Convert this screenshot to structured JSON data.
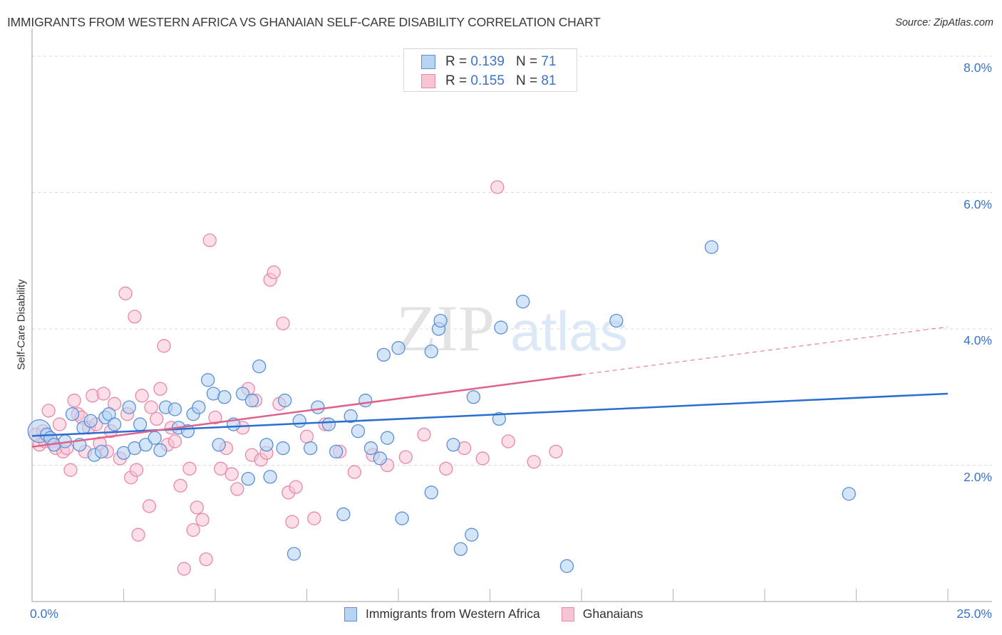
{
  "header": {
    "title": "IMMIGRANTS FROM WESTERN AFRICA VS GHANAIAN SELF-CARE DISABILITY CORRELATION CHART",
    "source": "Source: ZipAtlas.com"
  },
  "watermark": {
    "zip": "ZIP",
    "atlas": "atlas"
  },
  "legend_top": [
    {
      "r_label": "R =",
      "r_value": "0.139",
      "n_label": "N =",
      "n_value": "71"
    },
    {
      "r_label": "R =",
      "r_value": "0.155",
      "n_label": "N =",
      "n_value": "81"
    }
  ],
  "colors": {
    "blue_fill": "#b9d3f3",
    "blue_stroke": "#5b8fd8",
    "blue_line": "#2a6fd0",
    "pink_fill": "#f8c3d3",
    "pink_stroke": "#e889a6",
    "pink_line": "#e0628c",
    "axis_label": "#3b73c8",
    "grid": "#d9d9d9"
  },
  "chart_data": {
    "type": "scatter",
    "title": "IMMIGRANTS FROM WESTERN AFRICA VS GHANAIAN SELF-CARE DISABILITY CORRELATION CHART",
    "xlabel": "",
    "ylabel": "Self-Care Disability",
    "xlim": [
      0,
      25
    ],
    "ylim": [
      0,
      8.5
    ],
    "x_tick_labels": [
      "0.0%",
      "25.0%"
    ],
    "y_ticks": [
      2,
      4,
      6,
      8
    ],
    "y_tick_labels": [
      "2.0%",
      "4.0%",
      "6.0%",
      "8.0%"
    ],
    "grid": "horizontal-dashed",
    "legend_placement": "bottom-center",
    "series": [
      {
        "name": "Immigrants from Western Africa",
        "R": 0.139,
        "N": 71,
        "trend": {
          "x0": 0,
          "y0": 2.43,
          "x1": 25,
          "y1": 3.05,
          "style": "solid"
        },
        "points": [
          [
            0.2,
            2.5
          ],
          [
            0.4,
            2.45
          ],
          [
            0.5,
            2.4
          ],
          [
            0.6,
            2.3
          ],
          [
            0.9,
            2.35
          ],
          [
            1.1,
            2.75
          ],
          [
            1.3,
            2.3
          ],
          [
            1.4,
            2.55
          ],
          [
            1.6,
            2.65
          ],
          [
            1.7,
            2.15
          ],
          [
            1.9,
            2.2
          ],
          [
            2.0,
            2.7
          ],
          [
            2.1,
            2.75
          ],
          [
            2.25,
            2.6
          ],
          [
            2.5,
            2.18
          ],
          [
            2.65,
            2.85
          ],
          [
            2.8,
            2.25
          ],
          [
            2.95,
            2.6
          ],
          [
            3.1,
            2.3
          ],
          [
            3.35,
            2.4
          ],
          [
            3.5,
            2.22
          ],
          [
            3.65,
            2.85
          ],
          [
            3.9,
            2.82
          ],
          [
            4.0,
            2.55
          ],
          [
            4.25,
            2.5
          ],
          [
            4.4,
            2.75
          ],
          [
            4.55,
            2.85
          ],
          [
            4.8,
            3.25
          ],
          [
            4.95,
            3.05
          ],
          [
            5.1,
            2.3
          ],
          [
            5.25,
            3.0
          ],
          [
            5.5,
            2.6
          ],
          [
            5.75,
            3.05
          ],
          [
            5.9,
            1.8
          ],
          [
            6.0,
            2.95
          ],
          [
            6.2,
            3.45
          ],
          [
            6.4,
            2.3
          ],
          [
            6.5,
            1.83
          ],
          [
            6.85,
            2.25
          ],
          [
            6.9,
            2.95
          ],
          [
            7.15,
            0.7
          ],
          [
            7.3,
            2.65
          ],
          [
            7.6,
            2.25
          ],
          [
            7.8,
            2.85
          ],
          [
            8.1,
            2.6
          ],
          [
            8.3,
            2.2
          ],
          [
            8.5,
            1.28
          ],
          [
            8.7,
            2.72
          ],
          [
            8.9,
            2.5
          ],
          [
            9.1,
            2.95
          ],
          [
            9.25,
            2.25
          ],
          [
            9.5,
            2.1
          ],
          [
            9.7,
            2.4
          ],
          [
            9.6,
            3.62
          ],
          [
            10.0,
            3.72
          ],
          [
            10.1,
            1.22
          ],
          [
            10.9,
            3.67
          ],
          [
            10.9,
            1.6
          ],
          [
            11.1,
            4.0
          ],
          [
            11.15,
            4.12
          ],
          [
            11.5,
            2.3
          ],
          [
            11.7,
            0.77
          ],
          [
            12.0,
            0.98
          ],
          [
            12.05,
            3.0
          ],
          [
            12.8,
            4.02
          ],
          [
            12.75,
            2.68
          ],
          [
            13.4,
            4.4
          ],
          [
            14.6,
            0.52
          ],
          [
            15.95,
            4.12
          ],
          [
            18.55,
            5.2
          ],
          [
            22.3,
            1.58
          ]
        ]
      },
      {
        "name": "Ghanaians",
        "R": 0.155,
        "N": 81,
        "trend": {
          "x0": 0,
          "y0": 2.27,
          "x1": 15.0,
          "y1": 3.33,
          "x2": 25,
          "y2": 4.03,
          "style": "solid-then-dashed"
        },
        "points": [
          [
            0.1,
            2.45
          ],
          [
            0.2,
            2.3
          ],
          [
            0.3,
            2.5
          ],
          [
            0.35,
            2.35
          ],
          [
            0.45,
            2.8
          ],
          [
            0.55,
            2.35
          ],
          [
            0.65,
            2.25
          ],
          [
            0.75,
            2.6
          ],
          [
            0.85,
            2.2
          ],
          [
            0.95,
            2.25
          ],
          [
            1.05,
            1.93
          ],
          [
            1.15,
            2.95
          ],
          [
            1.25,
            2.75
          ],
          [
            1.35,
            2.7
          ],
          [
            1.45,
            2.2
          ],
          [
            1.55,
            2.55
          ],
          [
            1.65,
            3.02
          ],
          [
            1.75,
            2.6
          ],
          [
            1.85,
            2.32
          ],
          [
            1.95,
            3.05
          ],
          [
            2.05,
            2.2
          ],
          [
            2.15,
            2.5
          ],
          [
            2.25,
            2.9
          ],
          [
            2.4,
            2.1
          ],
          [
            2.55,
            4.52
          ],
          [
            2.6,
            2.75
          ],
          [
            2.7,
            1.82
          ],
          [
            2.8,
            4.18
          ],
          [
            2.85,
            1.93
          ],
          [
            2.9,
            0.98
          ],
          [
            3.0,
            3.02
          ],
          [
            3.2,
            1.4
          ],
          [
            3.25,
            2.85
          ],
          [
            3.4,
            2.68
          ],
          [
            3.5,
            3.12
          ],
          [
            3.6,
            3.75
          ],
          [
            3.7,
            2.3
          ],
          [
            3.8,
            2.55
          ],
          [
            3.9,
            2.35
          ],
          [
            4.05,
            1.7
          ],
          [
            4.15,
            0.48
          ],
          [
            4.3,
            1.95
          ],
          [
            4.4,
            1.05
          ],
          [
            4.5,
            1.38
          ],
          [
            4.65,
            1.2
          ],
          [
            4.75,
            0.62
          ],
          [
            4.85,
            5.3
          ],
          [
            5.0,
            2.7
          ],
          [
            5.15,
            1.95
          ],
          [
            5.3,
            2.25
          ],
          [
            5.45,
            1.87
          ],
          [
            5.6,
            1.65
          ],
          [
            5.75,
            2.55
          ],
          [
            5.9,
            3.12
          ],
          [
            6.0,
            2.15
          ],
          [
            6.1,
            2.95
          ],
          [
            6.25,
            2.08
          ],
          [
            6.4,
            2.18
          ],
          [
            6.5,
            4.72
          ],
          [
            6.6,
            4.83
          ],
          [
            6.75,
            2.9
          ],
          [
            6.85,
            4.08
          ],
          [
            7.0,
            1.6
          ],
          [
            7.1,
            1.17
          ],
          [
            7.2,
            1.68
          ],
          [
            7.5,
            2.42
          ],
          [
            7.7,
            1.22
          ],
          [
            8.0,
            2.6
          ],
          [
            8.4,
            2.2
          ],
          [
            8.8,
            1.9
          ],
          [
            9.3,
            2.15
          ],
          [
            9.7,
            2.0
          ],
          [
            10.2,
            2.12
          ],
          [
            10.7,
            2.45
          ],
          [
            11.3,
            1.95
          ],
          [
            11.8,
            2.25
          ],
          [
            12.3,
            2.1
          ],
          [
            13.0,
            2.35
          ],
          [
            13.7,
            2.05
          ],
          [
            14.3,
            2.2
          ],
          [
            12.7,
            6.08
          ]
        ]
      }
    ]
  },
  "axes": {
    "x_min_label": "0.0%",
    "x_max_label": "25.0%",
    "y_label": "Self-Care Disability"
  },
  "legend_bottom": [
    {
      "label": "Immigrants from Western Africa"
    },
    {
      "label": "Ghanaians"
    }
  ]
}
